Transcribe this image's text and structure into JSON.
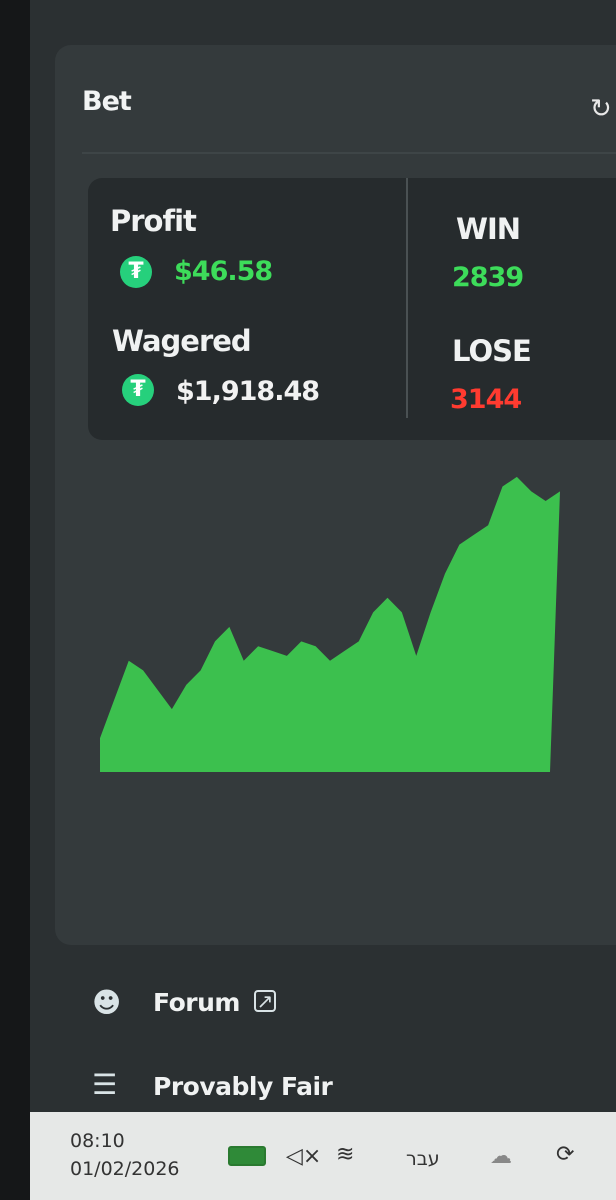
{
  "header": {
    "title": "Bet",
    "refresh_icon": "refresh-icon"
  },
  "stats": {
    "profit_label": "Profit",
    "profit_value": "$46.58",
    "wagered_label": "Wagered",
    "wagered_value": "$1,918.48",
    "win_label": "WIN",
    "win_value": "2839",
    "lose_label": "LOSE",
    "lose_value": "3144",
    "coin_icon": "tether-icon",
    "colors": {
      "profit": "#3ddc5a",
      "win": "#3ddc5a",
      "lose": "#ff3b30",
      "area": "#3cc04e"
    }
  },
  "chart_data": {
    "type": "area",
    "title": "",
    "xlabel": "",
    "ylabel": "",
    "values": [
      35,
      75,
      115,
      105,
      85,
      65,
      90,
      105,
      135,
      150,
      115,
      130,
      125,
      120,
      135,
      130,
      115,
      125,
      135,
      165,
      180,
      165,
      120,
      165,
      205,
      235,
      245,
      255,
      295,
      305,
      290,
      280,
      290
    ]
  },
  "nav": [
    {
      "label": "Forum",
      "icon": "forum-icon",
      "external_icon": "external-link-icon"
    },
    {
      "label": "Provably Fair",
      "icon": "scale-icon"
    }
  ],
  "taskbar": {
    "time": "08:10",
    "date": "01/02/2026",
    "language": "עבר",
    "mute_symbol": "◁×"
  }
}
